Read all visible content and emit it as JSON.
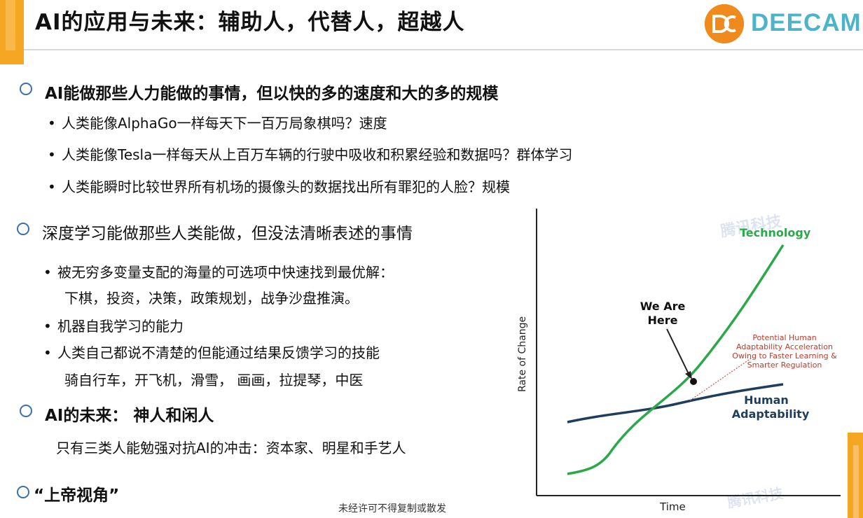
{
  "title": "AI的应用与未来：辅助人，代替人，超越人",
  "logo": {
    "text": "DEECAMP",
    "mark_color": "#f08a1c",
    "text_color": "#4cb3c8"
  },
  "sections": [
    {
      "heading": "AI能做那些人力能做的事情，但以快的多的速度和大的多的规模",
      "bullets": [
        "人类能像AlphaGo一样每天下一百万局象棋吗？速度",
        "人类能像Tesla一样每天从上百万车辆的行驶中吸收和积累经验和数据吗？群体学习",
        "人类能瞬时比较世界所有机场的摄像头的数据找出所有罪犯的人脸？规模"
      ]
    },
    {
      "heading": "深度学习能做那些人类能做，但没法清晰表述的事情",
      "bullets": [
        {
          "line1": "被无穷多变量支配的海量的可选项中快速找到最优解：",
          "line2": "下棋，投资，决策，政策规划，战争沙盘推演。"
        },
        {
          "line1": "机器自我学习的能力"
        },
        {
          "line1": "人类自己都说不清楚的但能通过结果反馈学习的技能",
          "line2": "骑自行车，开飞机，滑雪， 画画，拉提琴，中医"
        }
      ]
    },
    {
      "heading": "AI的未来：  神人和闲人",
      "text": "只有三类人能勉强对抗AI的冲击：资本家、明星和手艺人"
    },
    {
      "heading": "“上帝视角”"
    }
  ],
  "footer": "未经许可不得复制或散发",
  "chart_data": {
    "type": "line",
    "xlabel": "Time",
    "ylabel": "Rate of Change",
    "series": [
      {
        "name": "Technology",
        "color": "#2aa84a"
      },
      {
        "name": "Human Adaptability",
        "color": "#1f3d5c"
      }
    ],
    "annotations": [
      "We Are Here",
      "Potential Human Adaptability Acceleration Owing to Faster Learning & Smarter Regulation"
    ],
    "watermark": "腾讯科技"
  }
}
